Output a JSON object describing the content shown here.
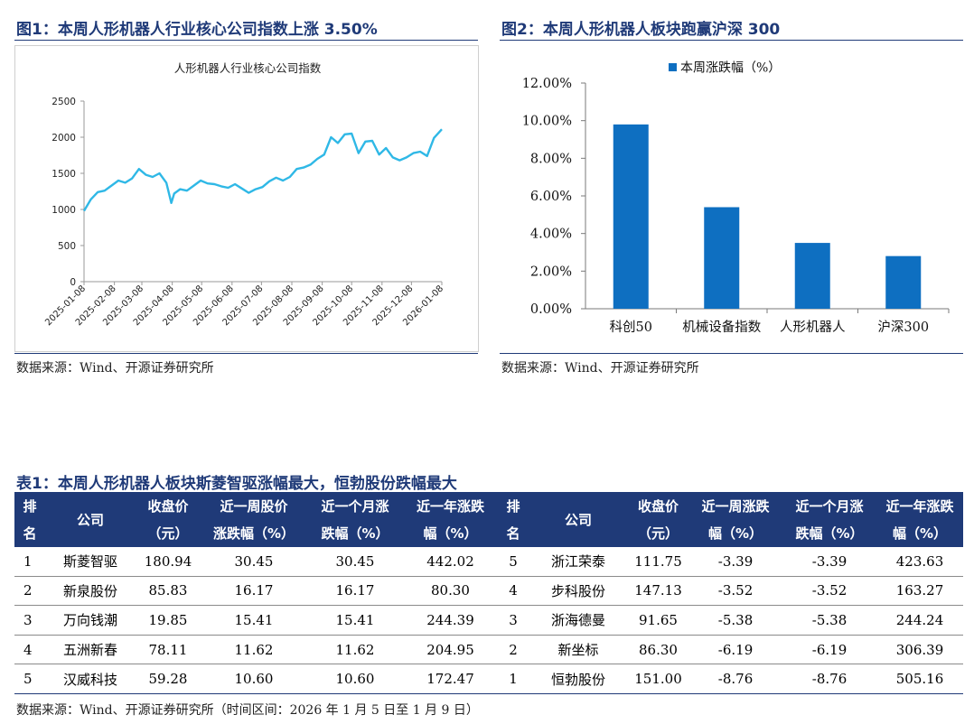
{
  "fig1": {
    "title": "图1：本周人形机器人行业核心公司指数上涨 3.50%",
    "chart_title": "人形机器人行业核心公司指数",
    "source": "数据来源：Wind、开源证券研究所"
  },
  "fig2": {
    "title": "图2：本周人形机器人板块跑赢沪深 300",
    "source": "数据来源：Wind、开源证券研究所"
  },
  "table1": {
    "title": "表1：本周人形机器人板块斯菱智驱涨幅最大，恒勃股份跌幅最大",
    "headers": [
      "排名",
      "公司",
      "收盘价（元）",
      "近一周股价涨跌幅（%）",
      "近一个月涨跌幅（%）",
      "近一年涨跌幅（%）",
      "排名",
      "公司",
      "收盘价（元）",
      "近一周涨跌幅（%）",
      "近一个月涨跌幅（%）",
      "近一年涨跌幅（%）"
    ],
    "headers_lines": [
      [
        "排",
        "名"
      ],
      [
        "公司"
      ],
      [
        "收盘价",
        "（元）"
      ],
      [
        "近一周股价",
        "涨跌幅（%）"
      ],
      [
        "近一个月涨",
        "跌幅（%）"
      ],
      [
        "近一年涨跌",
        "幅（%）"
      ],
      [
        "排",
        "名"
      ],
      [
        "公司"
      ],
      [
        "收盘价",
        "（元）"
      ],
      [
        "近一周涨跌",
        "幅（%）"
      ],
      [
        "近一个月涨",
        "跌幅（%）"
      ],
      [
        "近一年涨跌",
        "幅（%）"
      ]
    ],
    "rows": [
      [
        "1",
        "斯菱智驱",
        "180.94",
        "30.45",
        "30.45",
        "442.02",
        "5",
        "浙江荣泰",
        "111.75",
        "-3.39",
        "-3.39",
        "423.63"
      ],
      [
        "2",
        "新泉股份",
        "85.83",
        "16.17",
        "16.17",
        "80.30",
        "4",
        "步科股份",
        "147.13",
        "-3.52",
        "-3.52",
        "163.27"
      ],
      [
        "3",
        "万向钱潮",
        "19.85",
        "15.41",
        "15.41",
        "244.39",
        "3",
        "浙海德曼",
        "91.65",
        "-5.38",
        "-5.38",
        "244.24"
      ],
      [
        "4",
        "五洲新春",
        "78.11",
        "11.62",
        "11.62",
        "204.95",
        "2",
        "新坐标",
        "86.30",
        "-6.19",
        "-6.19",
        "306.39"
      ],
      [
        "5",
        "汉威科技",
        "59.28",
        "10.60",
        "10.60",
        "172.47",
        "1",
        "恒勃股份",
        "151.00",
        "-8.76",
        "-8.76",
        "505.16"
      ]
    ],
    "source": "数据来源：Wind、开源证券研究所（时间区间：2026 年 1 月 5 日至 1 月 9 日）"
  },
  "chart_data": [
    {
      "type": "line",
      "title": "人形机器人行业核心公司指数",
      "color": "#2fb8e6",
      "ylim": [
        0,
        2500
      ],
      "yticks": [
        0,
        500,
        1000,
        1500,
        2000,
        2500
      ],
      "xlabels": [
        "2025-01-08",
        "2025-02-08",
        "2025-03-08",
        "2025-04-08",
        "2025-05-08",
        "2025-06-08",
        "2025-07-08",
        "2025-08-08",
        "2025-09-08",
        "2025-10-08",
        "2025-11-08",
        "2025-12-08",
        "2026-01-08"
      ],
      "x": [
        "2025-01-08",
        "2025-01-15",
        "2025-01-22",
        "2025-01-29",
        "2025-02-05",
        "2025-02-12",
        "2025-02-19",
        "2025-02-26",
        "2025-03-05",
        "2025-03-12",
        "2025-03-19",
        "2025-03-26",
        "2025-04-02",
        "2025-04-07",
        "2025-04-10",
        "2025-04-16",
        "2025-04-23",
        "2025-04-30",
        "2025-05-07",
        "2025-05-14",
        "2025-05-21",
        "2025-05-28",
        "2025-06-04",
        "2025-06-11",
        "2025-06-18",
        "2025-06-25",
        "2025-07-02",
        "2025-07-09",
        "2025-07-16",
        "2025-07-23",
        "2025-07-30",
        "2025-08-06",
        "2025-08-13",
        "2025-08-20",
        "2025-08-27",
        "2025-09-03",
        "2025-09-10",
        "2025-09-17",
        "2025-09-24",
        "2025-10-01",
        "2025-10-08",
        "2025-10-15",
        "2025-10-22",
        "2025-10-29",
        "2025-11-05",
        "2025-11-12",
        "2025-11-19",
        "2025-11-26",
        "2025-12-03",
        "2025-12-10",
        "2025-12-17",
        "2025-12-24",
        "2025-12-31",
        "2026-01-08"
      ],
      "y": [
        980,
        1140,
        1240,
        1260,
        1330,
        1400,
        1370,
        1430,
        1560,
        1480,
        1450,
        1500,
        1370,
        1090,
        1220,
        1280,
        1260,
        1330,
        1400,
        1360,
        1350,
        1320,
        1300,
        1350,
        1290,
        1230,
        1280,
        1310,
        1390,
        1440,
        1400,
        1450,
        1560,
        1580,
        1620,
        1700,
        1760,
        2000,
        1920,
        2040,
        2050,
        1780,
        1940,
        1950,
        1760,
        1850,
        1720,
        1680,
        1720,
        1780,
        1800,
        1740,
        1990,
        2110
      ]
    },
    {
      "type": "bar",
      "categories": [
        "科创50",
        "机械设备指数",
        "人形机器人",
        "沪深300"
      ],
      "series": [
        {
          "name": "本周涨跌幅（%）",
          "values": [
            9.8,
            5.4,
            3.5,
            2.8
          ]
        }
      ],
      "color": "#0e6fc1",
      "ylim": [
        0,
        12
      ],
      "yticks": [
        "0.00%",
        "2.00%",
        "4.00%",
        "6.00%",
        "8.00%",
        "10.00%",
        "12.00%"
      ],
      "legend_position": "top"
    }
  ]
}
